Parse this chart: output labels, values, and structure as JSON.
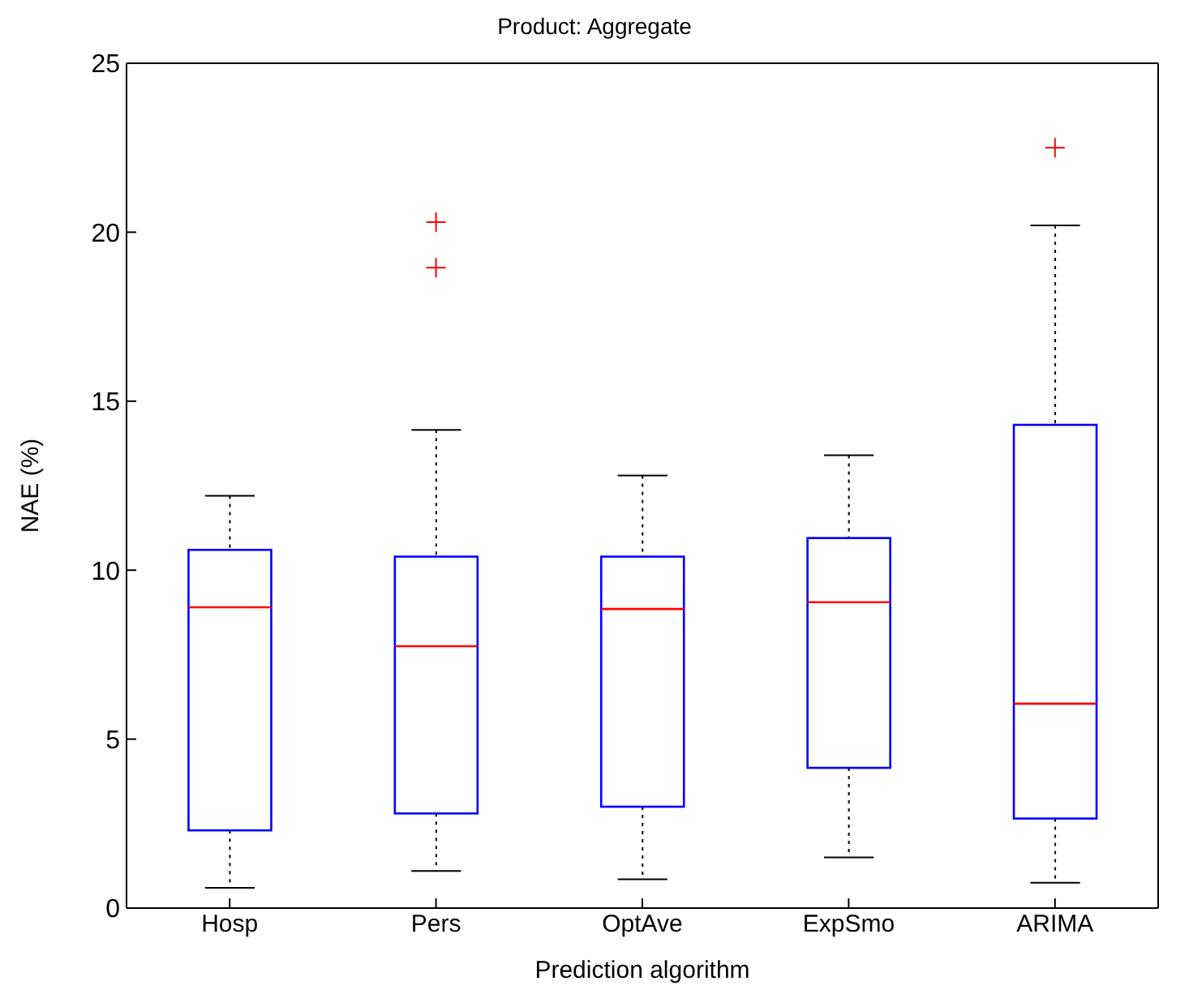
{
  "chart_data": {
    "type": "box",
    "title": "Product: Aggregate",
    "xlabel": "Prediction algorithm",
    "ylabel": "NAE (%)",
    "categories": [
      "Hosp",
      "Pers",
      "OptAve",
      "ExpSmo",
      "ARIMA"
    ],
    "series": [
      {
        "color": "#0000ff",
        "boxes": [
          {
            "low": 0.6,
            "q1": 2.3,
            "median": 8.9,
            "q3": 10.6,
            "high": 12.2
          },
          {
            "low": 1.1,
            "q1": 2.8,
            "median": 7.75,
            "q3": 10.4,
            "high": 14.15,
            "outliers": [
              20.3,
              18.95
            ]
          },
          {
            "low": 0.85,
            "q1": 3.0,
            "median": 8.85,
            "q3": 10.4,
            "high": 12.8
          },
          {
            "low": 1.5,
            "q1": 4.15,
            "median": 9.05,
            "q3": 10.95,
            "high": 13.4
          },
          {
            "low": 0.75,
            "q1": 2.65,
            "median": 6.05,
            "q3": 14.3,
            "high": 20.2,
            "outliers": [
              22.5
            ]
          }
        ]
      }
    ],
    "ylim": [
      0,
      25
    ],
    "yticks": [
      0,
      5,
      10,
      15,
      20,
      25
    ],
    "marker": "cross",
    "grid": false,
    "legend": false
  }
}
